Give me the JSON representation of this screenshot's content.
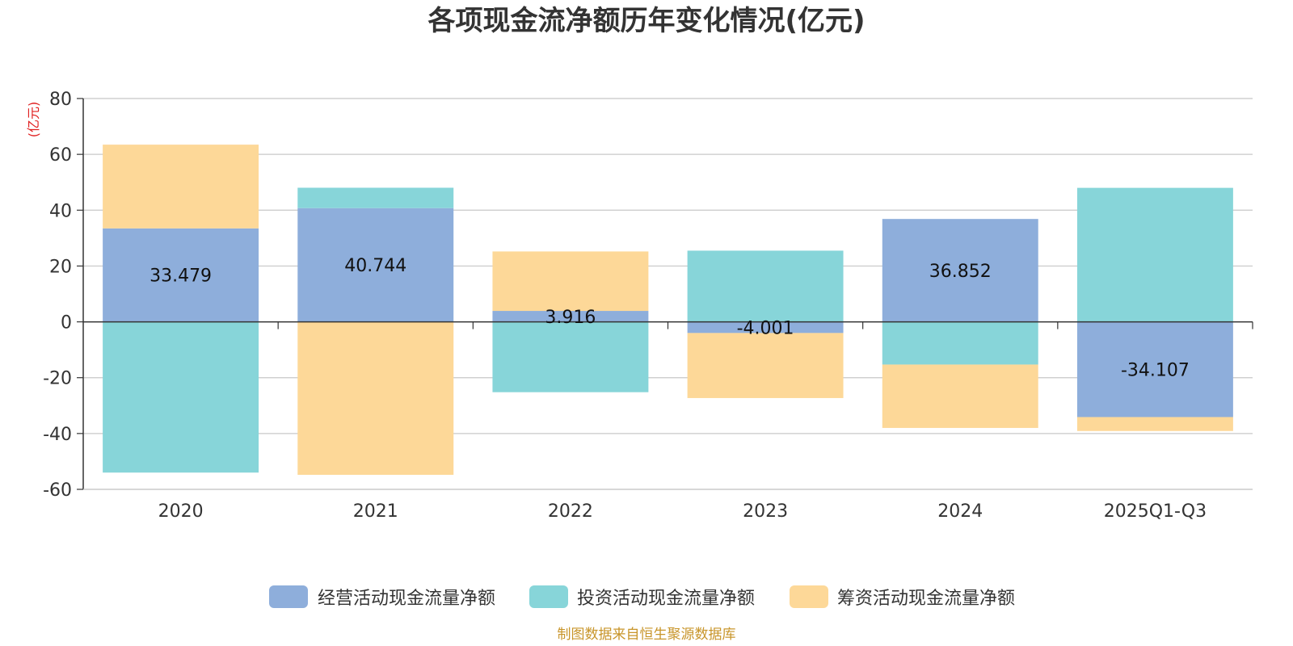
{
  "chart_data": {
    "type": "bar",
    "stacked": true,
    "title": "各项现金流净额历年变化情况(亿元)",
    "ylabel": "(亿元)",
    "ylim": [
      -60,
      80
    ],
    "yticks": [
      80,
      60,
      40,
      20,
      0,
      -20,
      -40,
      -60
    ],
    "grid": true,
    "legend_position": "bottom",
    "categories": [
      "2020",
      "2021",
      "2022",
      "2023",
      "2024",
      "2025Q1-Q3"
    ],
    "series": [
      {
        "name": "经营活动现金流量净额",
        "color": "#8eaedb",
        "values": [
          33.479,
          40.744,
          3.916,
          -4.001,
          36.852,
          -34.107
        ],
        "labels": [
          "33.479",
          "40.744",
          "3.916",
          "-4.001",
          "36.852",
          "-34.107"
        ]
      },
      {
        "name": "投资活动现金流量净额",
        "color": "#87d5d9",
        "values": [
          -54.0,
          7.3,
          -25.2,
          25.5,
          -15.3,
          48.0
        ]
      },
      {
        "name": "筹资活动现金流量净额",
        "color": "#fdd898",
        "values": [
          30.0,
          -54.8,
          21.3,
          -23.3,
          -22.7,
          -5.0
        ]
      }
    ],
    "source_note": "制图数据来自恒生聚源数据库"
  }
}
